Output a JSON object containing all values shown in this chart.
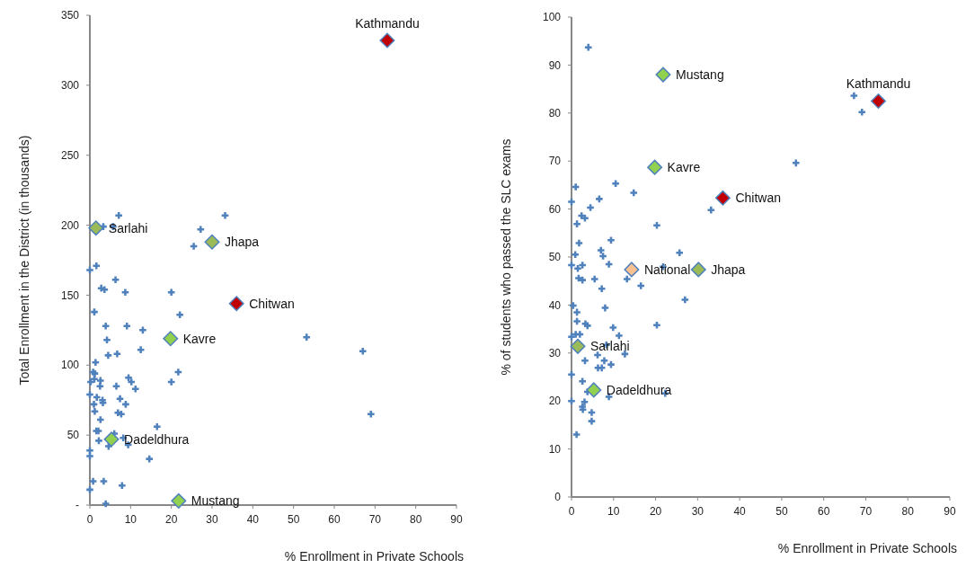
{
  "chart_data": [
    {
      "type": "scatter",
      "xlabel": "% Enrollment in Private Schools",
      "ylabel": "Total Enrollment in the District (in thousands)",
      "xlim": [
        0,
        90
      ],
      "xticks": [
        0,
        10,
        20,
        30,
        40,
        50,
        60,
        70,
        80,
        90
      ],
      "ylim": [
        0,
        350
      ],
      "yticks": [
        {
          "value": 0,
          "label": "-"
        },
        50,
        100,
        150,
        200,
        250,
        300,
        350
      ],
      "grid": false,
      "series": [
        {
          "type": "scatter",
          "color": "#4f81bd",
          "marker": "cross",
          "x": [
            7.1,
            33.2,
            27.2,
            3.3,
            5.7,
            25.5,
            1.6,
            0,
            6.3,
            2.8,
            3.6,
            8.7,
            20,
            1.1,
            22.1,
            3.9,
            9.1,
            13,
            4.2,
            53.2,
            4.5,
            6.7,
            12.5,
            67,
            1.4,
            0.8,
            1.2,
            21.7,
            0.2,
            1.1,
            2.6,
            9.5,
            10.2,
            20,
            6.5,
            2.5,
            11.2,
            0,
            7.4,
            1.7,
            1,
            3.1,
            3.2,
            8.8,
            6.9,
            7.7,
            1.2,
            2.6,
            69,
            1.6,
            2.1,
            2.2,
            6,
            8.2,
            9.4,
            4.6,
            0,
            0,
            14.6,
            0.8,
            3.4,
            7.9,
            0,
            3.9,
            16.5
          ],
          "values": [
            207,
            207,
            197,
            199,
            199,
            185,
            171,
            168,
            161,
            155,
            154,
            152,
            152,
            138,
            136,
            128,
            128,
            125,
            118,
            120,
            107,
            108,
            111,
            110,
            102,
            95,
            94,
            95,
            88,
            90,
            89,
            91,
            88,
            88,
            85,
            85,
            83,
            79,
            76,
            77,
            72,
            75,
            73,
            72,
            66,
            65,
            67,
            61,
            65,
            53,
            53,
            46,
            51,
            48,
            43,
            42,
            39,
            35,
            33,
            17,
            17,
            14,
            11,
            1,
            56
          ]
        },
        {
          "type": "scatter",
          "marker": "diamond",
          "x": [
            73,
            36,
            30,
            1.5,
            19.8,
            5.3,
            21.8
          ],
          "values": [
            332,
            144,
            188,
            198,
            119,
            47,
            3
          ],
          "colors": [
            "#c00000",
            "#c00000",
            "#9bbb59",
            "#9bbb59",
            "#92d050",
            "#92d050",
            "#92d050"
          ]
        }
      ],
      "annotations": [
        {
          "text": "Kathmandu",
          "x": 73,
          "y": 332
        },
        {
          "text": "Chitwan",
          "x": 36,
          "y": 144
        },
        {
          "text": "Jhapa",
          "x": 30,
          "y": 188
        },
        {
          "text": "Sarlahi",
          "x": 1.5,
          "y": 198
        },
        {
          "text": "Kavre",
          "x": 19.8,
          "y": 119
        },
        {
          "text": "Dadeldhura",
          "x": 5.3,
          "y": 47
        },
        {
          "text": "Mustang",
          "x": 21.8,
          "y": 3
        }
      ]
    },
    {
      "type": "scatter",
      "xlabel": "% Enrollment in Private Schools",
      "ylabel": "% of students who passed the SLC exams",
      "xlim": [
        0,
        90
      ],
      "xticks": [
        0,
        10,
        20,
        30,
        40,
        50,
        60,
        70,
        80,
        90
      ],
      "ylim": [
        0,
        100
      ],
      "yticks": [
        0,
        10,
        20,
        30,
        40,
        50,
        60,
        70,
        80,
        90,
        100
      ],
      "grid": false,
      "series": [
        {
          "type": "scatter",
          "color": "#4f81bd",
          "marker": "cross",
          "x": [
            4,
            67.2,
            69.1,
            53.4,
            1,
            10.5,
            14.8,
            6.6,
            0,
            4.5,
            33.2,
            2.4,
            3.2,
            1.3,
            20.3,
            1.8,
            9.4,
            7,
            7.5,
            25.7,
            0.9,
            0,
            2.6,
            8.9,
            21.8,
            1.5,
            1.7,
            2.6,
            5.5,
            13.2,
            7.2,
            16.5,
            27,
            0.4,
            8,
            1.3,
            1.3,
            3.3,
            3.8,
            20.3,
            9.9,
            0,
            1,
            2,
            11.3,
            8.3,
            12.7,
            6.2,
            3.2,
            7.8,
            6.3,
            7.2,
            9.4,
            0,
            2.6,
            3.8,
            22.3,
            8.9,
            0,
            3.1,
            2.6,
            2.7,
            4.8,
            4.8,
            1.2
          ],
          "values": [
            93.7,
            83.6,
            80.2,
            69.6,
            64.6,
            65.3,
            63.4,
            62.1,
            61.5,
            60.3,
            59.8,
            58.6,
            58.1,
            56.9,
            56.6,
            52.9,
            53.5,
            51.4,
            50.2,
            50.9,
            50.5,
            48.3,
            48.3,
            48.5,
            48,
            47.6,
            45.6,
            45.2,
            45.4,
            45.4,
            43.4,
            44,
            41.1,
            39.9,
            39.4,
            38.5,
            36.6,
            36.1,
            35.7,
            35.8,
            35.3,
            33.4,
            33.9,
            33.9,
            33.6,
            31.7,
            29.8,
            29.6,
            28.4,
            28.4,
            26.9,
            26.9,
            27.6,
            25.5,
            24.1,
            21.9,
            21.6,
            20.9,
            20,
            19.8,
            18.8,
            18.2,
            17.6,
            15.8,
            13
          ]
        },
        {
          "type": "scatter",
          "marker": "diamond",
          "x": [
            21.8,
            73,
            19.8,
            36,
            14.3,
            30.2,
            1.5,
            5.3
          ],
          "values": [
            88,
            82.5,
            68.7,
            62.3,
            47.4,
            47.4,
            31.4,
            22.3
          ],
          "colors": [
            "#92d050",
            "#c00000",
            "#92d050",
            "#c00000",
            "#fac090",
            "#9bbb59",
            "#9bbb59",
            "#92d050"
          ]
        }
      ],
      "annotations": [
        {
          "text": "Mustang",
          "x": 21.8,
          "y": 88
        },
        {
          "text": "Kathmandu",
          "x": 73,
          "y": 82.5
        },
        {
          "text": "Kavre",
          "x": 19.8,
          "y": 68.7
        },
        {
          "text": "Chitwan",
          "x": 36,
          "y": 62.3
        },
        {
          "text": "National",
          "x": 14.3,
          "y": 47.4
        },
        {
          "text": "Jhapa",
          "x": 30.2,
          "y": 47.4
        },
        {
          "text": "Sarlahi",
          "x": 1.5,
          "y": 31.4
        },
        {
          "text": "Dadeldhura",
          "x": 5.3,
          "y": 22.3
        }
      ]
    }
  ]
}
